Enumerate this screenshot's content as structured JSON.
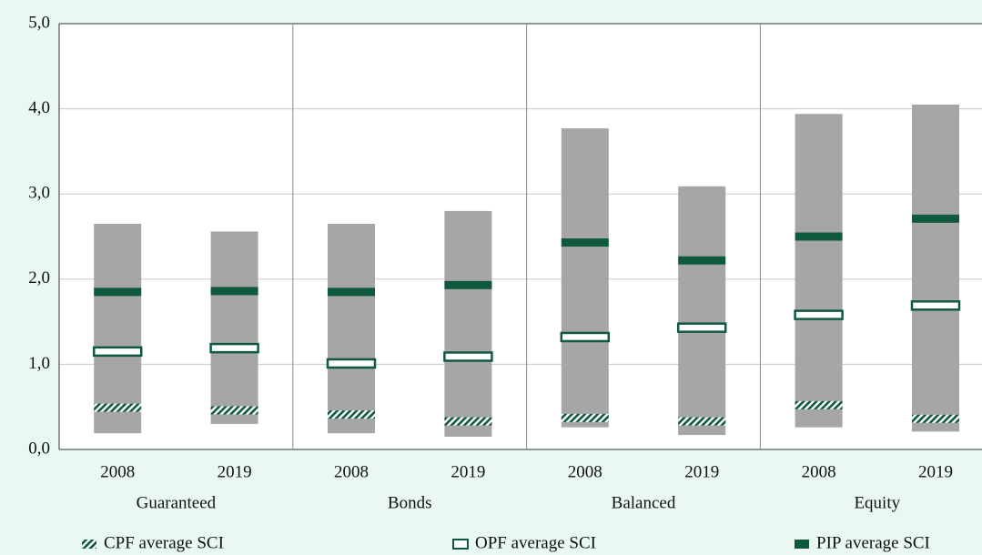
{
  "chart_data": {
    "type": "range_markers",
    "categories": [
      "2008",
      "2019",
      "2008",
      "2019",
      "2008",
      "2019",
      "2008",
      "2019"
    ],
    "groups": [
      "Guaranteed",
      "Bonds",
      "Balanced",
      "Equity"
    ],
    "range": {
      "low": [
        0.19,
        0.3,
        0.19,
        0.15,
        0.26,
        0.17,
        0.26,
        0.21
      ],
      "high": [
        2.65,
        2.56,
        2.65,
        2.8,
        3.77,
        3.09,
        3.94,
        4.05
      ],
      "color": "#a6a6a6"
    },
    "series": [
      {
        "name": "CPF average SCI",
        "color": "#0f5a3c",
        "style": "hatched",
        "values": [
          0.49,
          0.46,
          0.41,
          0.33,
          0.37,
          0.33,
          0.52,
          0.36
        ]
      },
      {
        "name": "OPF average SCI",
        "color": "#0f5a3c",
        "style": "hollow",
        "values": [
          1.15,
          1.19,
          1.01,
          1.09,
          1.32,
          1.43,
          1.58,
          1.69
        ]
      },
      {
        "name": "PIP average SCI",
        "color": "#0f5a3c",
        "style": "solid",
        "values": [
          1.85,
          1.86,
          1.85,
          1.93,
          2.43,
          2.22,
          2.5,
          2.71
        ]
      }
    ],
    "ylim": [
      0,
      5
    ],
    "yticks": [
      {
        "value": 0,
        "label": "0,0"
      },
      {
        "value": 1,
        "label": "1,0"
      },
      {
        "value": 2,
        "label": "2,0"
      },
      {
        "value": 3,
        "label": "3,0"
      },
      {
        "value": 4,
        "label": "4,0"
      },
      {
        "value": 5,
        "label": "5,0"
      }
    ],
    "grid": true
  }
}
